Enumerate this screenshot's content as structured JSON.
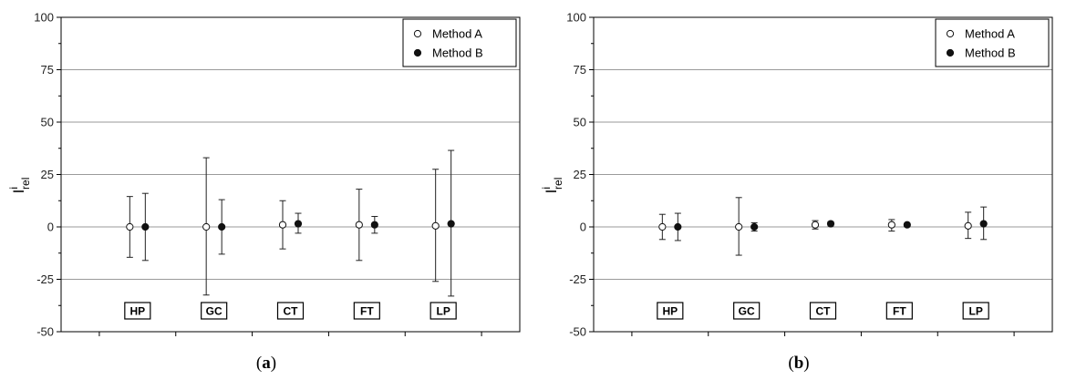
{
  "chart_data": [
    {
      "type": "scatter",
      "panel_label": "a",
      "ylabel": "I",
      "ylabel_sup": "i",
      "ylabel_sub": "rel",
      "ylim": [
        -50,
        100
      ],
      "yticks": [
        -50,
        -25,
        0,
        25,
        50,
        75,
        100
      ],
      "grid": true,
      "legend_position": "top-right",
      "categories": [
        "HP",
        "GC",
        "CT",
        "FT",
        "LP"
      ],
      "series": [
        {
          "name": "Method A",
          "marker": "open-circle",
          "values": [
            0,
            0,
            1,
            1,
            0.5
          ],
          "err_low": [
            -14.5,
            -32.5,
            -10.5,
            -16,
            -26
          ],
          "err_high": [
            14.5,
            33,
            12.5,
            18,
            27.5
          ]
        },
        {
          "name": "Method B",
          "marker": "filled-circle",
          "values": [
            0,
            0,
            1.5,
            1,
            1.5
          ],
          "err_low": [
            -16,
            -13,
            -3,
            -3,
            -33
          ],
          "err_high": [
            16,
            13,
            6.5,
            5,
            36.5
          ]
        }
      ]
    },
    {
      "type": "scatter",
      "panel_label": "b",
      "ylabel": "I",
      "ylabel_sup": "i",
      "ylabel_sub": "rel",
      "ylim": [
        -50,
        100
      ],
      "yticks": [
        -50,
        -25,
        0,
        25,
        50,
        75,
        100
      ],
      "grid": true,
      "legend_position": "top-right",
      "categories": [
        "HP",
        "GC",
        "CT",
        "FT",
        "LP"
      ],
      "series": [
        {
          "name": "Method A",
          "marker": "open-circle",
          "values": [
            0,
            0,
            1,
            1,
            0.5
          ],
          "err_low": [
            -6,
            -13.5,
            -1,
            -2,
            -5.5
          ],
          "err_high": [
            6,
            14,
            3,
            3.5,
            7
          ]
        },
        {
          "name": "Method B",
          "marker": "filled-circle",
          "values": [
            0,
            0,
            1.5,
            1,
            1.5
          ],
          "err_low": [
            -6.5,
            -2,
            0.5,
            0.5,
            -6
          ],
          "err_high": [
            6.5,
            2,
            2.5,
            1.5,
            9.5
          ]
        }
      ]
    }
  ]
}
